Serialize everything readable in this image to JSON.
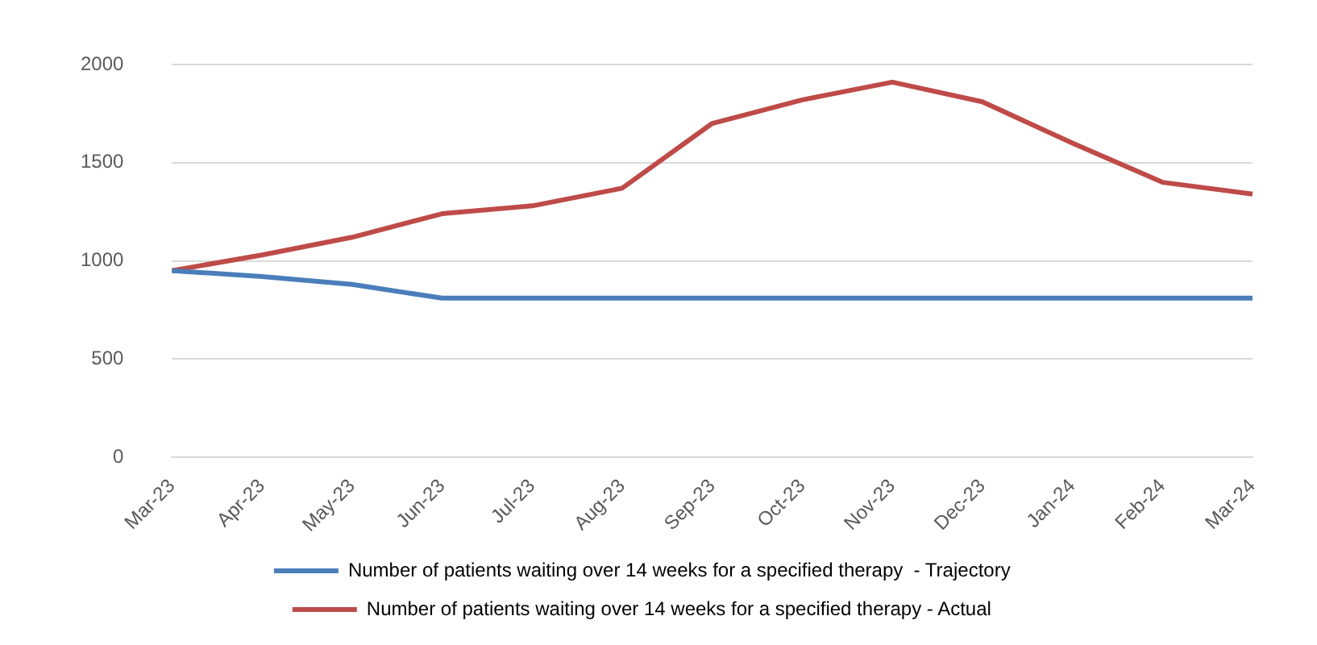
{
  "chart_data": {
    "type": "line",
    "categories": [
      "Mar-23",
      "Apr-23",
      "May-23",
      "Jun-23",
      "Jul-23",
      "Aug-23",
      "Sep-23",
      "Oct-23",
      "Nov-23",
      "Dec-23",
      "Jan-24",
      "Feb-24",
      "Mar-24"
    ],
    "series": [
      {
        "name": "Number of patients waiting over 14 weeks for a specified therapy  - Trajectory",
        "color": "#4a7ebb",
        "values": [
          950,
          920,
          880,
          810,
          810,
          810,
          810,
          810,
          810,
          810,
          810,
          810,
          810
        ]
      },
      {
        "name": "Number of patients waiting over 14 weeks for a specified therapy - Actual",
        "color": "#be4b48",
        "values": [
          950,
          1030,
          1120,
          1240,
          1280,
          1370,
          1700,
          1820,
          1910,
          1810,
          1600,
          1400,
          1340
        ]
      }
    ],
    "ylim": [
      0,
      2000
    ],
    "yticks": [
      0,
      500,
      1000,
      1500,
      2000
    ],
    "grid": "y",
    "legend": "bottom",
    "marker": "none",
    "line_style": "solid"
  }
}
